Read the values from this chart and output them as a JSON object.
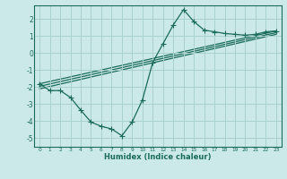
{
  "xlabel": "Humidex (Indice chaleur)",
  "background_color": "#cce9e9",
  "grid_color": "#aad0d0",
  "line_color": "#1a6b5a",
  "xlim": [
    -0.5,
    23.5
  ],
  "ylim": [
    -5.5,
    2.8
  ],
  "xticks": [
    0,
    1,
    2,
    3,
    4,
    5,
    6,
    7,
    8,
    9,
    10,
    11,
    12,
    13,
    14,
    15,
    16,
    17,
    18,
    19,
    20,
    21,
    22,
    23
  ],
  "yticks": [
    -5,
    -4,
    -3,
    -2,
    -1,
    0,
    1,
    2
  ],
  "curve_main_x": [
    0,
    1,
    2,
    3,
    4,
    5,
    6,
    7,
    8,
    9,
    10,
    11,
    12,
    13,
    14,
    15,
    16,
    17,
    18,
    19,
    20,
    21,
    22,
    23
  ],
  "curve_main_y": [
    -1.8,
    -2.2,
    -2.2,
    -2.6,
    -3.35,
    -4.05,
    -4.3,
    -4.45,
    -4.85,
    -4.05,
    -2.75,
    -0.55,
    0.55,
    1.65,
    2.55,
    1.85,
    1.35,
    1.25,
    1.15,
    1.1,
    1.05,
    1.1,
    1.25,
    1.3
  ],
  "trend1_x": [
    0,
    23
  ],
  "trend1_y": [
    -1.8,
    1.3
  ],
  "trend2_x": [
    0,
    23
  ],
  "trend2_y": [
    -1.95,
    1.2
  ],
  "trend3_x": [
    0,
    23
  ],
  "trend3_y": [
    -2.1,
    1.1
  ]
}
